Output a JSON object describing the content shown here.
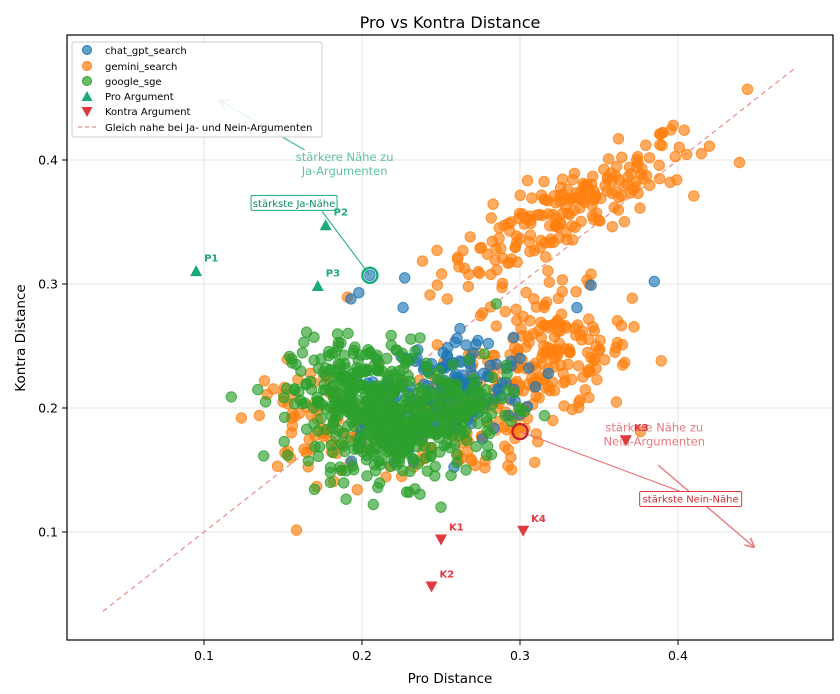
{
  "chart_data": {
    "type": "scatter",
    "title": "Pro vs Kontra Distance",
    "xlabel": "Pro Distance",
    "ylabel": "Kontra Distance",
    "xlim": [
      0.016,
      0.5
    ],
    "ylim": [
      0.06,
      0.462
    ],
    "grid": true,
    "xticks": [
      0.1,
      0.2,
      0.3,
      0.4
    ],
    "yticks": [
      0.1,
      0.2,
      0.3,
      0.4
    ],
    "xtick_labels": [
      "0.1",
      "0.2",
      "0.3",
      "0.4"
    ],
    "ytick_labels": [
      "0.1",
      "0.2",
      "0.3",
      "0.4"
    ],
    "legend": {
      "placement": "top-left",
      "entries": [
        {
          "label": "chat_gpt_search",
          "marker": "circle",
          "color": "#1f77b4"
        },
        {
          "label": "gemini_search",
          "marker": "circle",
          "color": "#ff7f0e"
        },
        {
          "label": "google_sge",
          "marker": "circle",
          "color": "#2ca02c"
        },
        {
          "label": "Pro Argument",
          "marker": "triangle-up",
          "color": "#1aaa7a"
        },
        {
          "label": "Kontra Argument",
          "marker": "triangle-down",
          "color": "#e0393e"
        },
        {
          "label": "Gleich nahe bei Ja- und Nein-Argumenten",
          "marker": "dashed-line",
          "color": "#e88a8a"
        }
      ]
    },
    "series": [
      {
        "name": "chat_gpt_search",
        "color": "#1f77b4",
        "clusters": [
          {
            "cx": 0.262,
            "cy": 0.215,
            "sx": 0.02,
            "sy": 0.022,
            "n": 140
          },
          {
            "cx": 0.215,
            "cy": 0.195,
            "sx": 0.015,
            "sy": 0.02,
            "n": 60
          }
        ],
        "points": [
          [
            0.205,
            0.307
          ],
          [
            0.198,
            0.293
          ],
          [
            0.193,
            0.288
          ],
          [
            0.227,
            0.305
          ],
          [
            0.226,
            0.281
          ],
          [
            0.345,
            0.299
          ],
          [
            0.385,
            0.302
          ],
          [
            0.296,
            0.257
          ],
          [
            0.3,
            0.24
          ],
          [
            0.318,
            0.228
          ],
          [
            0.336,
            0.281
          ],
          [
            0.262,
            0.264
          ],
          [
            0.28,
            0.252
          ]
        ]
      },
      {
        "name": "gemini_search",
        "color": "#ff7f0e",
        "clusters": [
          {
            "cx": 0.33,
            "cy": 0.36,
            "sx": 0.04,
            "sy": 0.03,
            "n": 200,
            "corr": 0.85
          },
          {
            "cx": 0.32,
            "cy": 0.245,
            "sx": 0.025,
            "sy": 0.025,
            "n": 170
          },
          {
            "cx": 0.265,
            "cy": 0.19,
            "sx": 0.03,
            "sy": 0.022,
            "n": 140
          },
          {
            "cx": 0.17,
            "cy": 0.19,
            "sx": 0.02,
            "sy": 0.022,
            "n": 70
          }
        ],
        "points": [
          [
            0.444,
            0.457
          ],
          [
            0.41,
            0.371
          ],
          [
            0.397,
            0.428
          ],
          [
            0.404,
            0.424
          ],
          [
            0.395,
            0.382
          ],
          [
            0.3,
            0.181
          ],
          [
            0.345,
            0.308
          ],
          [
            0.14,
            0.211
          ],
          [
            0.15,
            0.205
          ],
          [
            0.135,
            0.194
          ]
        ]
      },
      {
        "name": "google_sge",
        "color": "#2ca02c",
        "clusters": [
          {
            "cx": 0.2,
            "cy": 0.205,
            "sx": 0.022,
            "sy": 0.025,
            "n": 340
          },
          {
            "cx": 0.23,
            "cy": 0.175,
            "sx": 0.018,
            "sy": 0.018,
            "n": 140
          },
          {
            "cx": 0.262,
            "cy": 0.2,
            "sx": 0.018,
            "sy": 0.015,
            "n": 110
          }
        ],
        "points": [
          [
            0.139,
            0.205
          ],
          [
            0.285,
            0.284
          ],
          [
            0.25,
            0.12
          ],
          [
            0.18,
            0.14
          ],
          [
            0.18,
            0.148
          ],
          [
            0.3,
            0.198
          ]
        ]
      }
    ],
    "pro_arguments": [
      {
        "label": "P1",
        "x": 0.095,
        "y": 0.31
      },
      {
        "label": "P2",
        "x": 0.177,
        "y": 0.347
      },
      {
        "label": "P3",
        "x": 0.172,
        "y": 0.298
      }
    ],
    "kontra_arguments": [
      {
        "label": "K1",
        "x": 0.25,
        "y": 0.094
      },
      {
        "label": "K2",
        "x": 0.244,
        "y": 0.056
      },
      {
        "label": "K3",
        "x": 0.367,
        "y": 0.174
      },
      {
        "label": "K4",
        "x": 0.302,
        "y": 0.101
      }
    ],
    "diagonal": {
      "x0": 0.036,
      "y0": 0.036,
      "x1": 0.475,
      "y1": 0.475
    },
    "annotations": {
      "strongest_pro": {
        "label": "stärkste Ja-Nähe",
        "point": [
          0.205,
          0.307
        ],
        "box_at": [
          0.157,
          0.365
        ],
        "color": "#1aaa7a"
      },
      "strongest_kontra": {
        "label": "stärkste Nein-Nähe",
        "point": [
          0.3,
          0.181
        ],
        "box_at": [
          0.408,
          0.127
        ],
        "color": "#e0393e"
      },
      "pro_direction": {
        "line1": "stärkere Nähe zu",
        "line2": "Ja-Argumenten",
        "text_at": [
          0.189,
          0.4
        ],
        "arrow_to": [
          0.11,
          0.448
        ],
        "color": "#5fc4a0"
      },
      "kontra_direction": {
        "line1": "stärkere Nähe zu",
        "line2": "Nein-Argumenten",
        "text_at": [
          0.385,
          0.178
        ],
        "arrow_to": [
          0.448,
          0.088
        ],
        "color": "#e87a7d"
      }
    }
  }
}
